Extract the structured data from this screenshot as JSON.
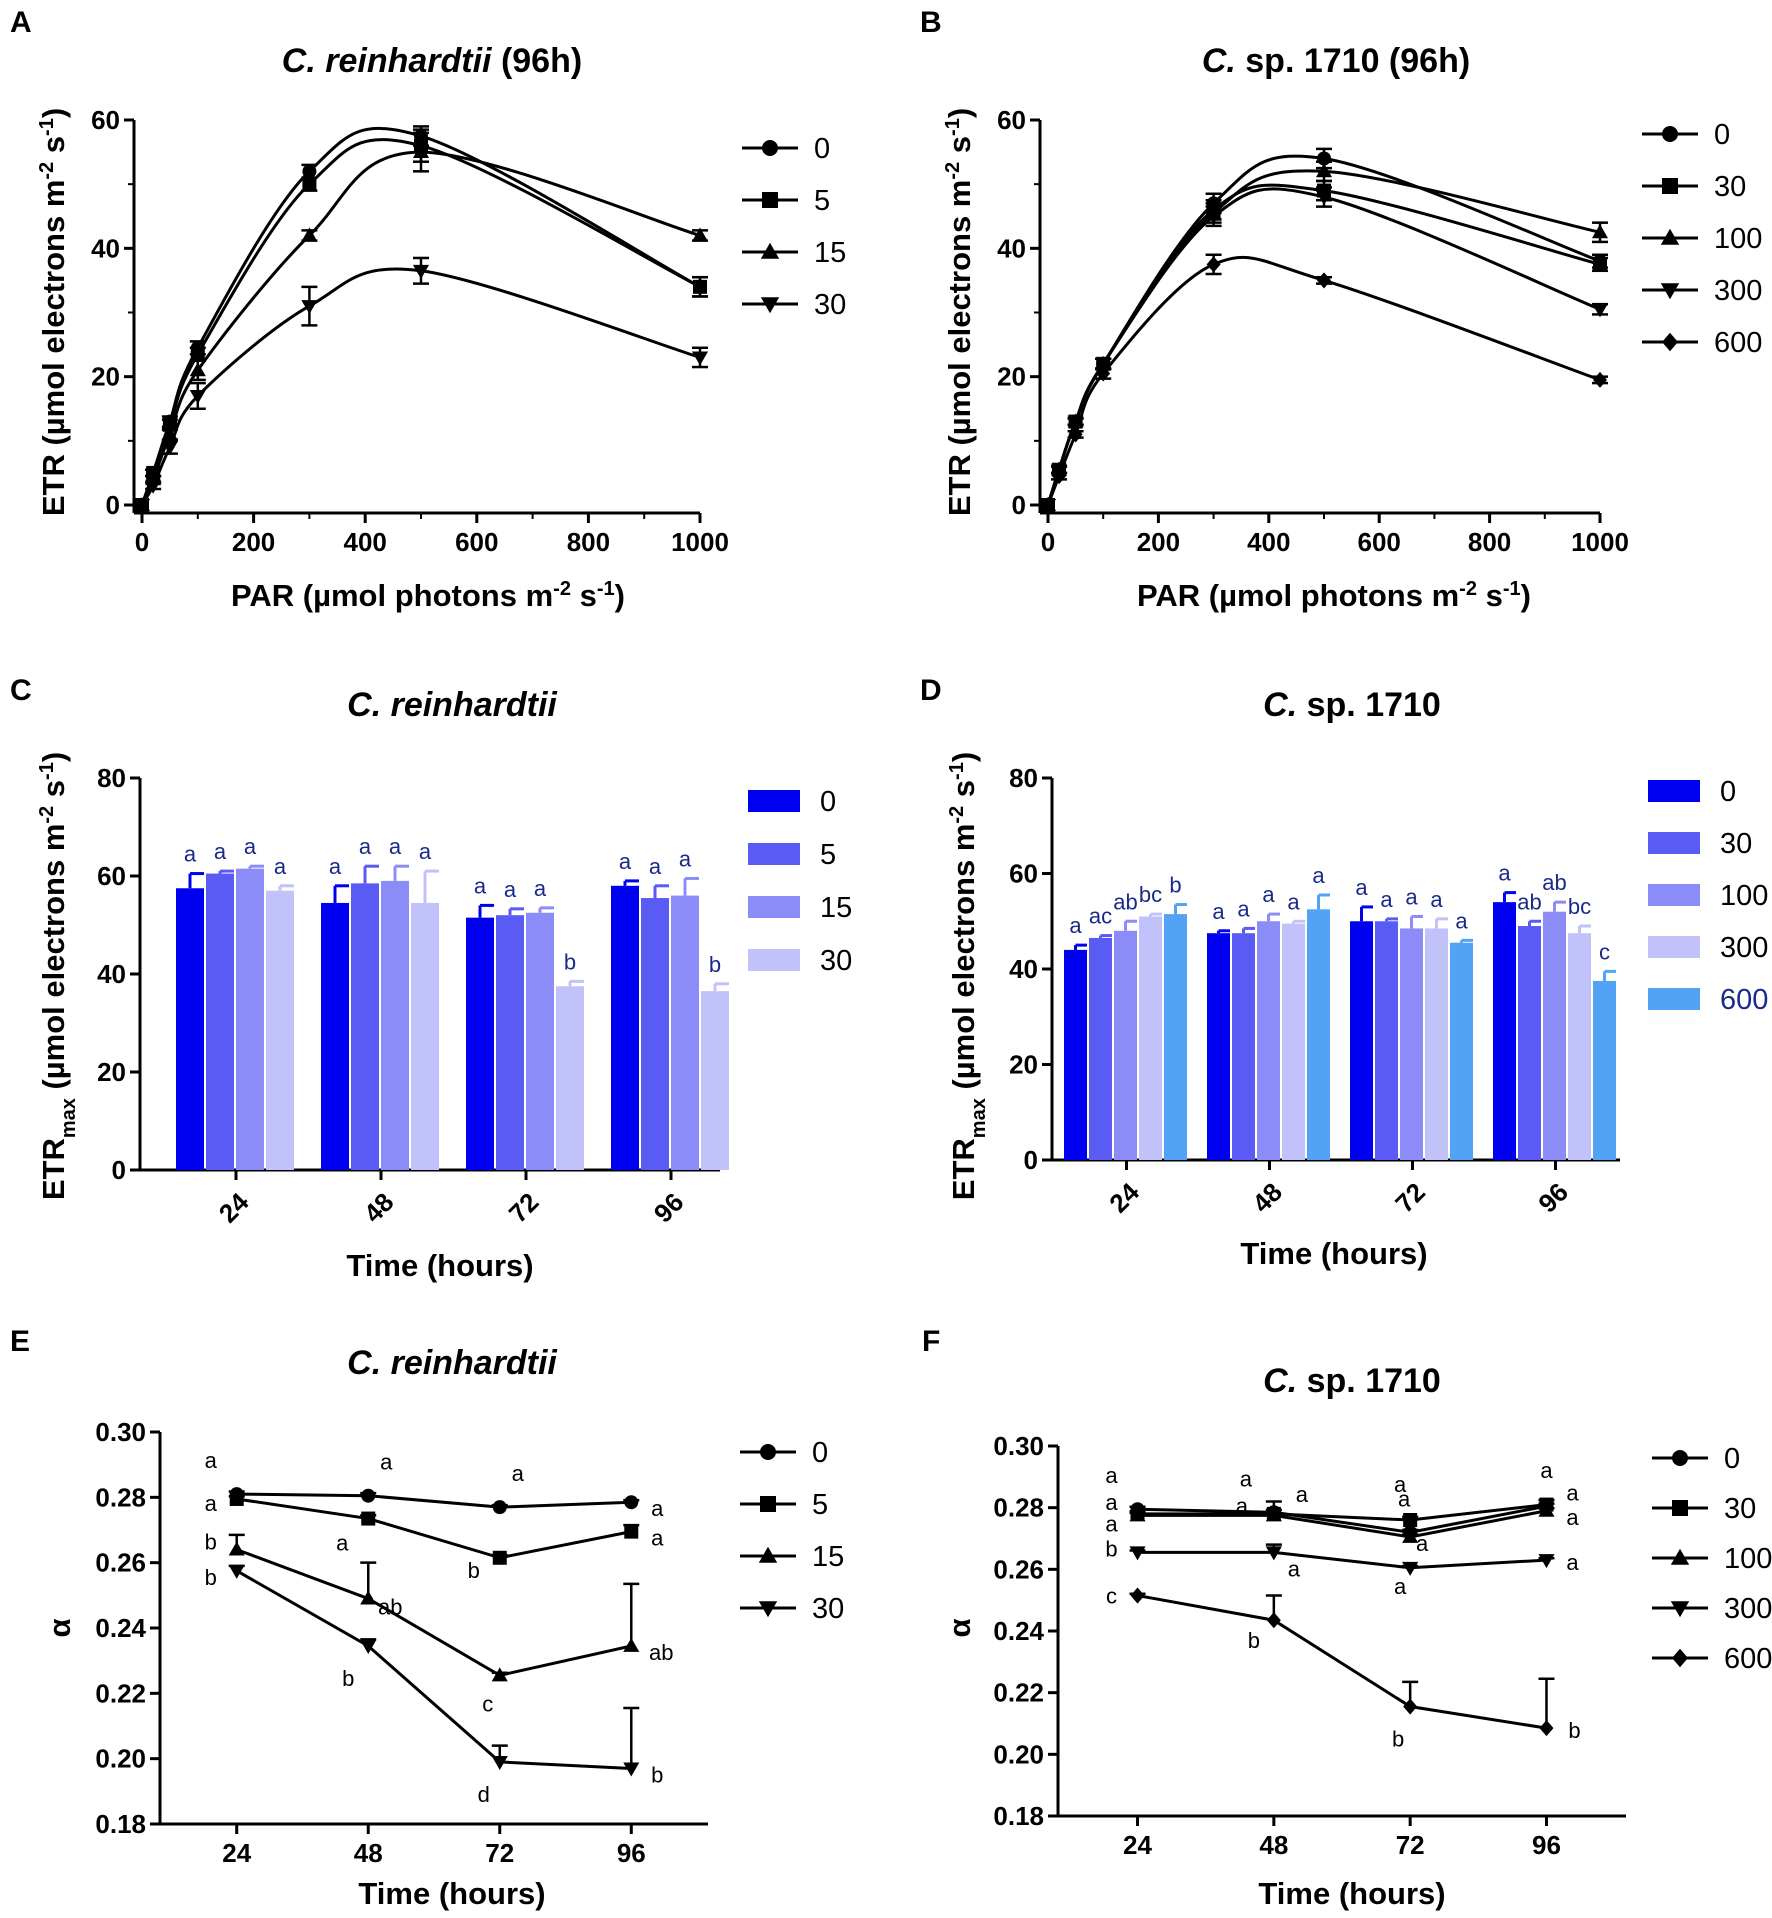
{
  "colors": {
    "bar0": "#0000f0",
    "bar1": "#5a5af5",
    "bar2": "#8c8cf8",
    "bar3": "#c2c2fb",
    "bar4": "#52a3f5",
    "sig_text": "#1a2a8a",
    "legend_highlight": "#1a2a8a"
  },
  "chart_data": [
    {
      "panel": "A",
      "type": "line",
      "title": [
        "C. reinhardtii",
        " (96h)"
      ],
      "xlabel": "PAR (µmol photons m⁻² s⁻¹)",
      "ylabel": "ETR (µmol electrons m⁻² s⁻¹)",
      "xlim": [
        0,
        1000
      ],
      "ylim": [
        0,
        60
      ],
      "xticks": [
        "0",
        "200",
        "400",
        "600",
        "800",
        "1000"
      ],
      "yticks": [
        "0",
        "20",
        "40",
        "60"
      ],
      "x": [
        0,
        20,
        50,
        100,
        300,
        500,
        1000
      ],
      "series": [
        {
          "name": "0",
          "marker": "circle",
          "values": [
            0,
            5,
            13,
            24.5,
            52,
            57.5,
            34
          ],
          "err": [
            0,
            0.5,
            0.8,
            1,
            1,
            1.5,
            1.5
          ]
        },
        {
          "name": "5",
          "marker": "square",
          "values": [
            0,
            5,
            12.5,
            23.5,
            50,
            56,
            34
          ],
          "err": [
            0,
            0.5,
            0.8,
            1,
            1,
            2.5,
            1.5
          ]
        },
        {
          "name": "15",
          "marker": "triangle",
          "values": [
            0,
            4,
            11,
            21,
            42,
            55,
            42
          ],
          "err": [
            0,
            0.5,
            0.8,
            1.5,
            0.8,
            3,
            0.8
          ]
        },
        {
          "name": "30",
          "marker": "triangle-down",
          "values": [
            0,
            3,
            9,
            17,
            31,
            36.5,
            23
          ],
          "err": [
            0,
            0.5,
            1,
            2,
            3,
            2,
            1.5
          ]
        }
      ]
    },
    {
      "panel": "B",
      "type": "line",
      "title": [
        "C.",
        " sp. 1710 (96h)"
      ],
      "xlabel": "PAR (µmol photons m⁻² s⁻¹)",
      "ylabel": "ETR (µmol electrons m⁻² s⁻¹)",
      "xlim": [
        0,
        1000
      ],
      "ylim": [
        0,
        60
      ],
      "xticks": [
        "0",
        "200",
        "400",
        "600",
        "800",
        "1000"
      ],
      "yticks": [
        "0",
        "20",
        "40",
        "60"
      ],
      "x": [
        0,
        20,
        50,
        100,
        300,
        500,
        1000
      ],
      "series": [
        {
          "name": "0",
          "marker": "circle",
          "values": [
            0,
            5.5,
            13,
            22,
            47,
            54,
            38
          ],
          "err": [
            0,
            0.5,
            0.5,
            0.8,
            1.5,
            1.5,
            1
          ]
        },
        {
          "name": "30",
          "marker": "square",
          "values": [
            0,
            5.5,
            13,
            22,
            46,
            49,
            37.5
          ],
          "err": [
            0,
            0.5,
            0.5,
            0.8,
            1.5,
            1.5,
            1
          ]
        },
        {
          "name": "100",
          "marker": "triangle",
          "values": [
            0,
            5.5,
            13,
            22,
            45.5,
            52,
            42.5
          ],
          "err": [
            0,
            0.5,
            0.5,
            0.8,
            1.5,
            1.5,
            1.5
          ]
        },
        {
          "name": "300",
          "marker": "triangle-down",
          "values": [
            0,
            5.5,
            13,
            22,
            45,
            48,
            30.5
          ],
          "err": [
            0,
            0.5,
            0.5,
            0.8,
            1.5,
            1.5,
            0.8
          ]
        },
        {
          "name": "600",
          "marker": "diamond",
          "values": [
            0,
            4.5,
            11,
            20.5,
            37.5,
            35,
            19.5
          ],
          "err": [
            0,
            0.5,
            0.5,
            0.8,
            1.5,
            0.5,
            0.5
          ]
        }
      ]
    },
    {
      "panel": "C",
      "type": "bar",
      "title": [
        "C. reinhardtii",
        ""
      ],
      "xlabel": "Time (hours)",
      "ylabel": [
        "ETR",
        "max",
        " (µmol electrons m⁻² s⁻¹)"
      ],
      "ylim": [
        0,
        80
      ],
      "yticks": [
        "0",
        "20",
        "40",
        "60",
        "80"
      ],
      "categories": [
        "24",
        "48",
        "72",
        "96"
      ],
      "series": [
        {
          "name": "0",
          "values": [
            57.5,
            54.5,
            51.5,
            58
          ],
          "err": [
            3,
            3.5,
            2.5,
            1
          ],
          "sig": [
            "a",
            "a",
            "a",
            "a"
          ]
        },
        {
          "name": "5",
          "values": [
            60.5,
            58.5,
            52,
            55.5
          ],
          "err": [
            0.5,
            3.5,
            1.3,
            2.5
          ],
          "sig": [
            "a",
            "a",
            "a",
            "a"
          ]
        },
        {
          "name": "15",
          "values": [
            61.5,
            59,
            52.5,
            56
          ],
          "err": [
            0.5,
            3,
            1,
            3.5
          ],
          "sig": [
            "a",
            "a",
            "a",
            "a"
          ]
        },
        {
          "name": "30",
          "values": [
            57,
            54.5,
            37.5,
            36.5
          ],
          "err": [
            1,
            6.5,
            1,
            1.5
          ],
          "sig": [
            "a",
            "a",
            "b",
            "b"
          ]
        }
      ]
    },
    {
      "panel": "D",
      "type": "bar",
      "title": [
        "C.",
        " sp. 1710"
      ],
      "xlabel": "Time (hours)",
      "ylabel": [
        "ETR",
        "max",
        " (µmol electrons m⁻² s⁻¹)"
      ],
      "ylim": [
        0,
        80
      ],
      "yticks": [
        "0",
        "20",
        "40",
        "60",
        "80"
      ],
      "categories": [
        "24",
        "48",
        "72",
        "96"
      ],
      "series": [
        {
          "name": "0",
          "values": [
            44,
            47.5,
            50,
            54
          ],
          "err": [
            1,
            0.5,
            3,
            2
          ],
          "sig": [
            "a",
            "a",
            "a",
            "a"
          ]
        },
        {
          "name": "30",
          "values": [
            46.5,
            47.5,
            50,
            49
          ],
          "err": [
            0.5,
            1,
            0.5,
            1
          ],
          "sig": [
            "ac",
            "a",
            "a",
            "ab"
          ]
        },
        {
          "name": "100",
          "values": [
            48,
            50,
            48.5,
            52
          ],
          "err": [
            2,
            1.5,
            2.5,
            2
          ],
          "sig": [
            "ab",
            "a",
            "a",
            "ab"
          ]
        },
        {
          "name": "300",
          "values": [
            51,
            49.5,
            48.5,
            47.5
          ],
          "err": [
            0.5,
            0.5,
            2,
            1.5
          ],
          "sig": [
            "bc",
            "a",
            "a",
            "bc"
          ]
        },
        {
          "name": "600",
          "values": [
            51.5,
            52.5,
            45.5,
            37.5
          ],
          "err": [
            2,
            3,
            0.5,
            2
          ],
          "sig": [
            "b",
            "a",
            "a",
            "c"
          ]
        }
      ]
    },
    {
      "panel": "E",
      "type": "line",
      "title": [
        "C. reinhardtii",
        ""
      ],
      "xlabel": "Time (hours)",
      "ylabel": "α",
      "xlim": [
        10,
        110
      ],
      "ylim": [
        0.18,
        0.3
      ],
      "xticks": [
        "24",
        "48",
        "72",
        "96"
      ],
      "yticks": [
        "0.18",
        "0.20",
        "0.22",
        "0.24",
        "0.26",
        "0.28",
        "0.30"
      ],
      "x": [
        24,
        48,
        72,
        96
      ],
      "series": [
        {
          "name": "0",
          "marker": "circle",
          "values": [
            0.281,
            0.2805,
            0.277,
            0.2785
          ],
          "err": [
            0.0008,
            0.0008,
            0.0006,
            0.0006
          ],
          "sig": [
            "a",
            "a",
            "a",
            "a"
          ]
        },
        {
          "name": "5",
          "marker": "square",
          "values": [
            0.2795,
            0.2735,
            0.2615,
            0.2695
          ],
          "err": [
            0.0008,
            0.001,
            0.0008,
            0.002
          ],
          "sig": [
            "a",
            "a",
            "b",
            "a"
          ]
        },
        {
          "name": "15",
          "marker": "triangle",
          "values": [
            0.264,
            0.249,
            0.2255,
            0.2345
          ],
          "err": [
            0.0045,
            0.011,
            0.0008,
            0.019
          ],
          "sig": [
            "b",
            "ab",
            "c",
            "ab"
          ]
        },
        {
          "name": "30",
          "marker": "triangle-down",
          "values": [
            0.2575,
            0.2345,
            0.199,
            0.197
          ],
          "err": [
            0.0015,
            0.002,
            0.005,
            0.0185
          ],
          "sig": [
            "b",
            "b",
            "d",
            "b"
          ]
        }
      ]
    },
    {
      "panel": "F",
      "type": "line",
      "title": [
        "C.",
        " sp. 1710"
      ],
      "xlabel": "Time (hours)",
      "ylabel": "α",
      "xlim": [
        10,
        110
      ],
      "ylim": [
        0.18,
        0.3
      ],
      "xticks": [
        "24",
        "48",
        "72",
        "96"
      ],
      "yticks": [
        "0.18",
        "0.20",
        "0.22",
        "0.24",
        "0.26",
        "0.28",
        "0.30"
      ],
      "x": [
        24,
        48,
        72,
        96
      ],
      "series": [
        {
          "name": "0",
          "marker": "circle",
          "values": [
            0.2795,
            0.2785,
            0.272,
            0.2805
          ],
          "err": [
            0.0008,
            0.0008,
            0.0008,
            0.0008
          ],
          "sig": [
            "a",
            "a",
            "a",
            "a"
          ]
        },
        {
          "name": "30",
          "marker": "square",
          "values": [
            0.278,
            0.278,
            0.276,
            0.281
          ],
          "err": [
            0.0008,
            0.004,
            0.001,
            0.0015
          ],
          "sig": [
            "a",
            "a",
            "a",
            "a"
          ]
        },
        {
          "name": "100",
          "marker": "triangle",
          "values": [
            0.2775,
            0.2775,
            0.2705,
            0.279
          ],
          "err": [
            0.0008,
            0.0008,
            0.0008,
            0.0008
          ],
          "sig": [
            "a",
            "a",
            "a",
            "a"
          ]
        },
        {
          "name": "300",
          "marker": "triangle-down",
          "values": [
            0.2655,
            0.2655,
            0.2605,
            0.263
          ],
          "err": [
            0.0006,
            0.0025,
            0.0006,
            0.0006
          ],
          "sig": [
            "b",
            "a",
            "a",
            "a"
          ]
        },
        {
          "name": "600",
          "marker": "diamond",
          "values": [
            0.2515,
            0.2435,
            0.2155,
            0.2085
          ],
          "err": [
            0.0006,
            0.008,
            0.008,
            0.016
          ],
          "sig": [
            "c",
            "b",
            "b",
            "b"
          ]
        }
      ]
    }
  ]
}
